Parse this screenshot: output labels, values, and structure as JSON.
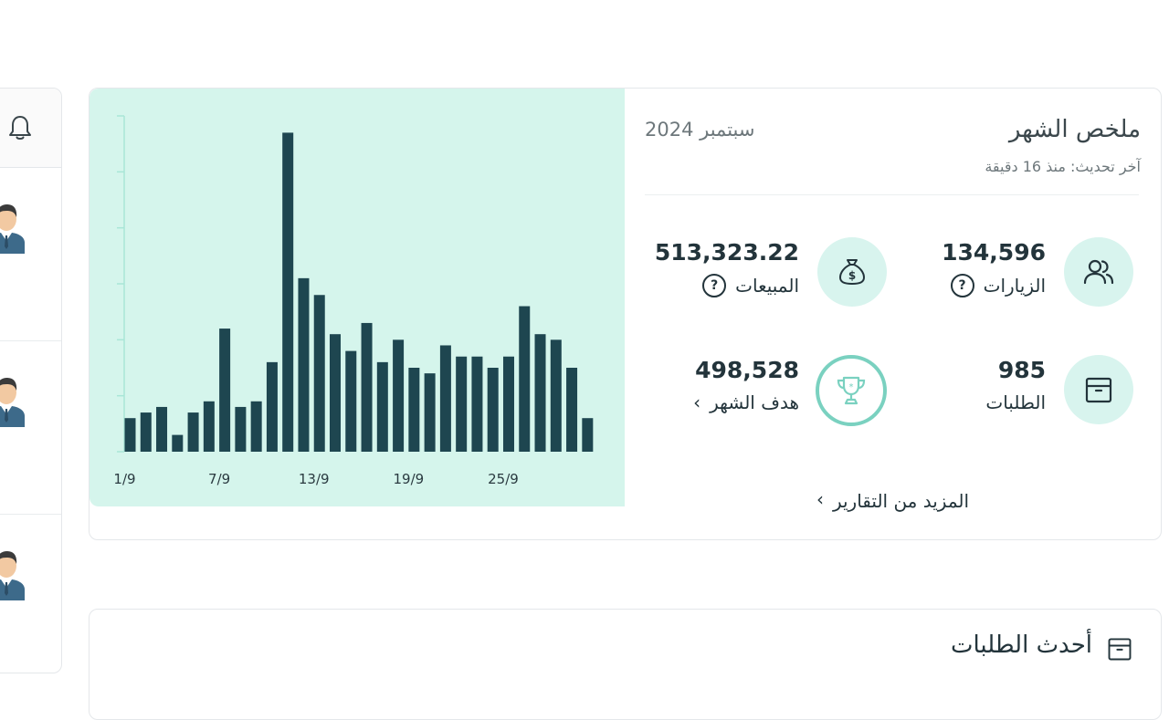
{
  "summary": {
    "title": "ملخص الشهر",
    "last_update": "آخر تحديث: منذ 16 دقيقة",
    "month": "سبتمبر 2024",
    "more_reports": "المزيد من التقارير",
    "stats": {
      "visits": {
        "value": "134,596",
        "label": "الزيارات",
        "help": "?",
        "icon": "users-icon"
      },
      "sales": {
        "value": "513,323.22",
        "label": "المبيعات",
        "help": "?",
        "icon": "money-bag-icon"
      },
      "orders": {
        "value": "985",
        "label": "الطلبات",
        "icon": "box-icon"
      },
      "goal": {
        "value": "498,528",
        "label": "هدف الشهر",
        "icon": "trophy-icon"
      }
    }
  },
  "orders_card": {
    "title": "أحدث الطلبات"
  },
  "colors": {
    "accent_bg": "#d5f5ec",
    "bar": "#1e4650",
    "ring": "#7ad1c0"
  },
  "chart_data": {
    "type": "bar",
    "tick_labels": [
      "1/9",
      "7/9",
      "13/9",
      "19/9",
      "25/9"
    ],
    "values": [
      6,
      7,
      8,
      3,
      7,
      9,
      22,
      8,
      9,
      16,
      57,
      31,
      28,
      21,
      18,
      23,
      16,
      20,
      15,
      14,
      19,
      17,
      17,
      15,
      17,
      26,
      21,
      20,
      15,
      6
    ],
    "ylim": [
      0,
      60
    ],
    "grid": false
  }
}
